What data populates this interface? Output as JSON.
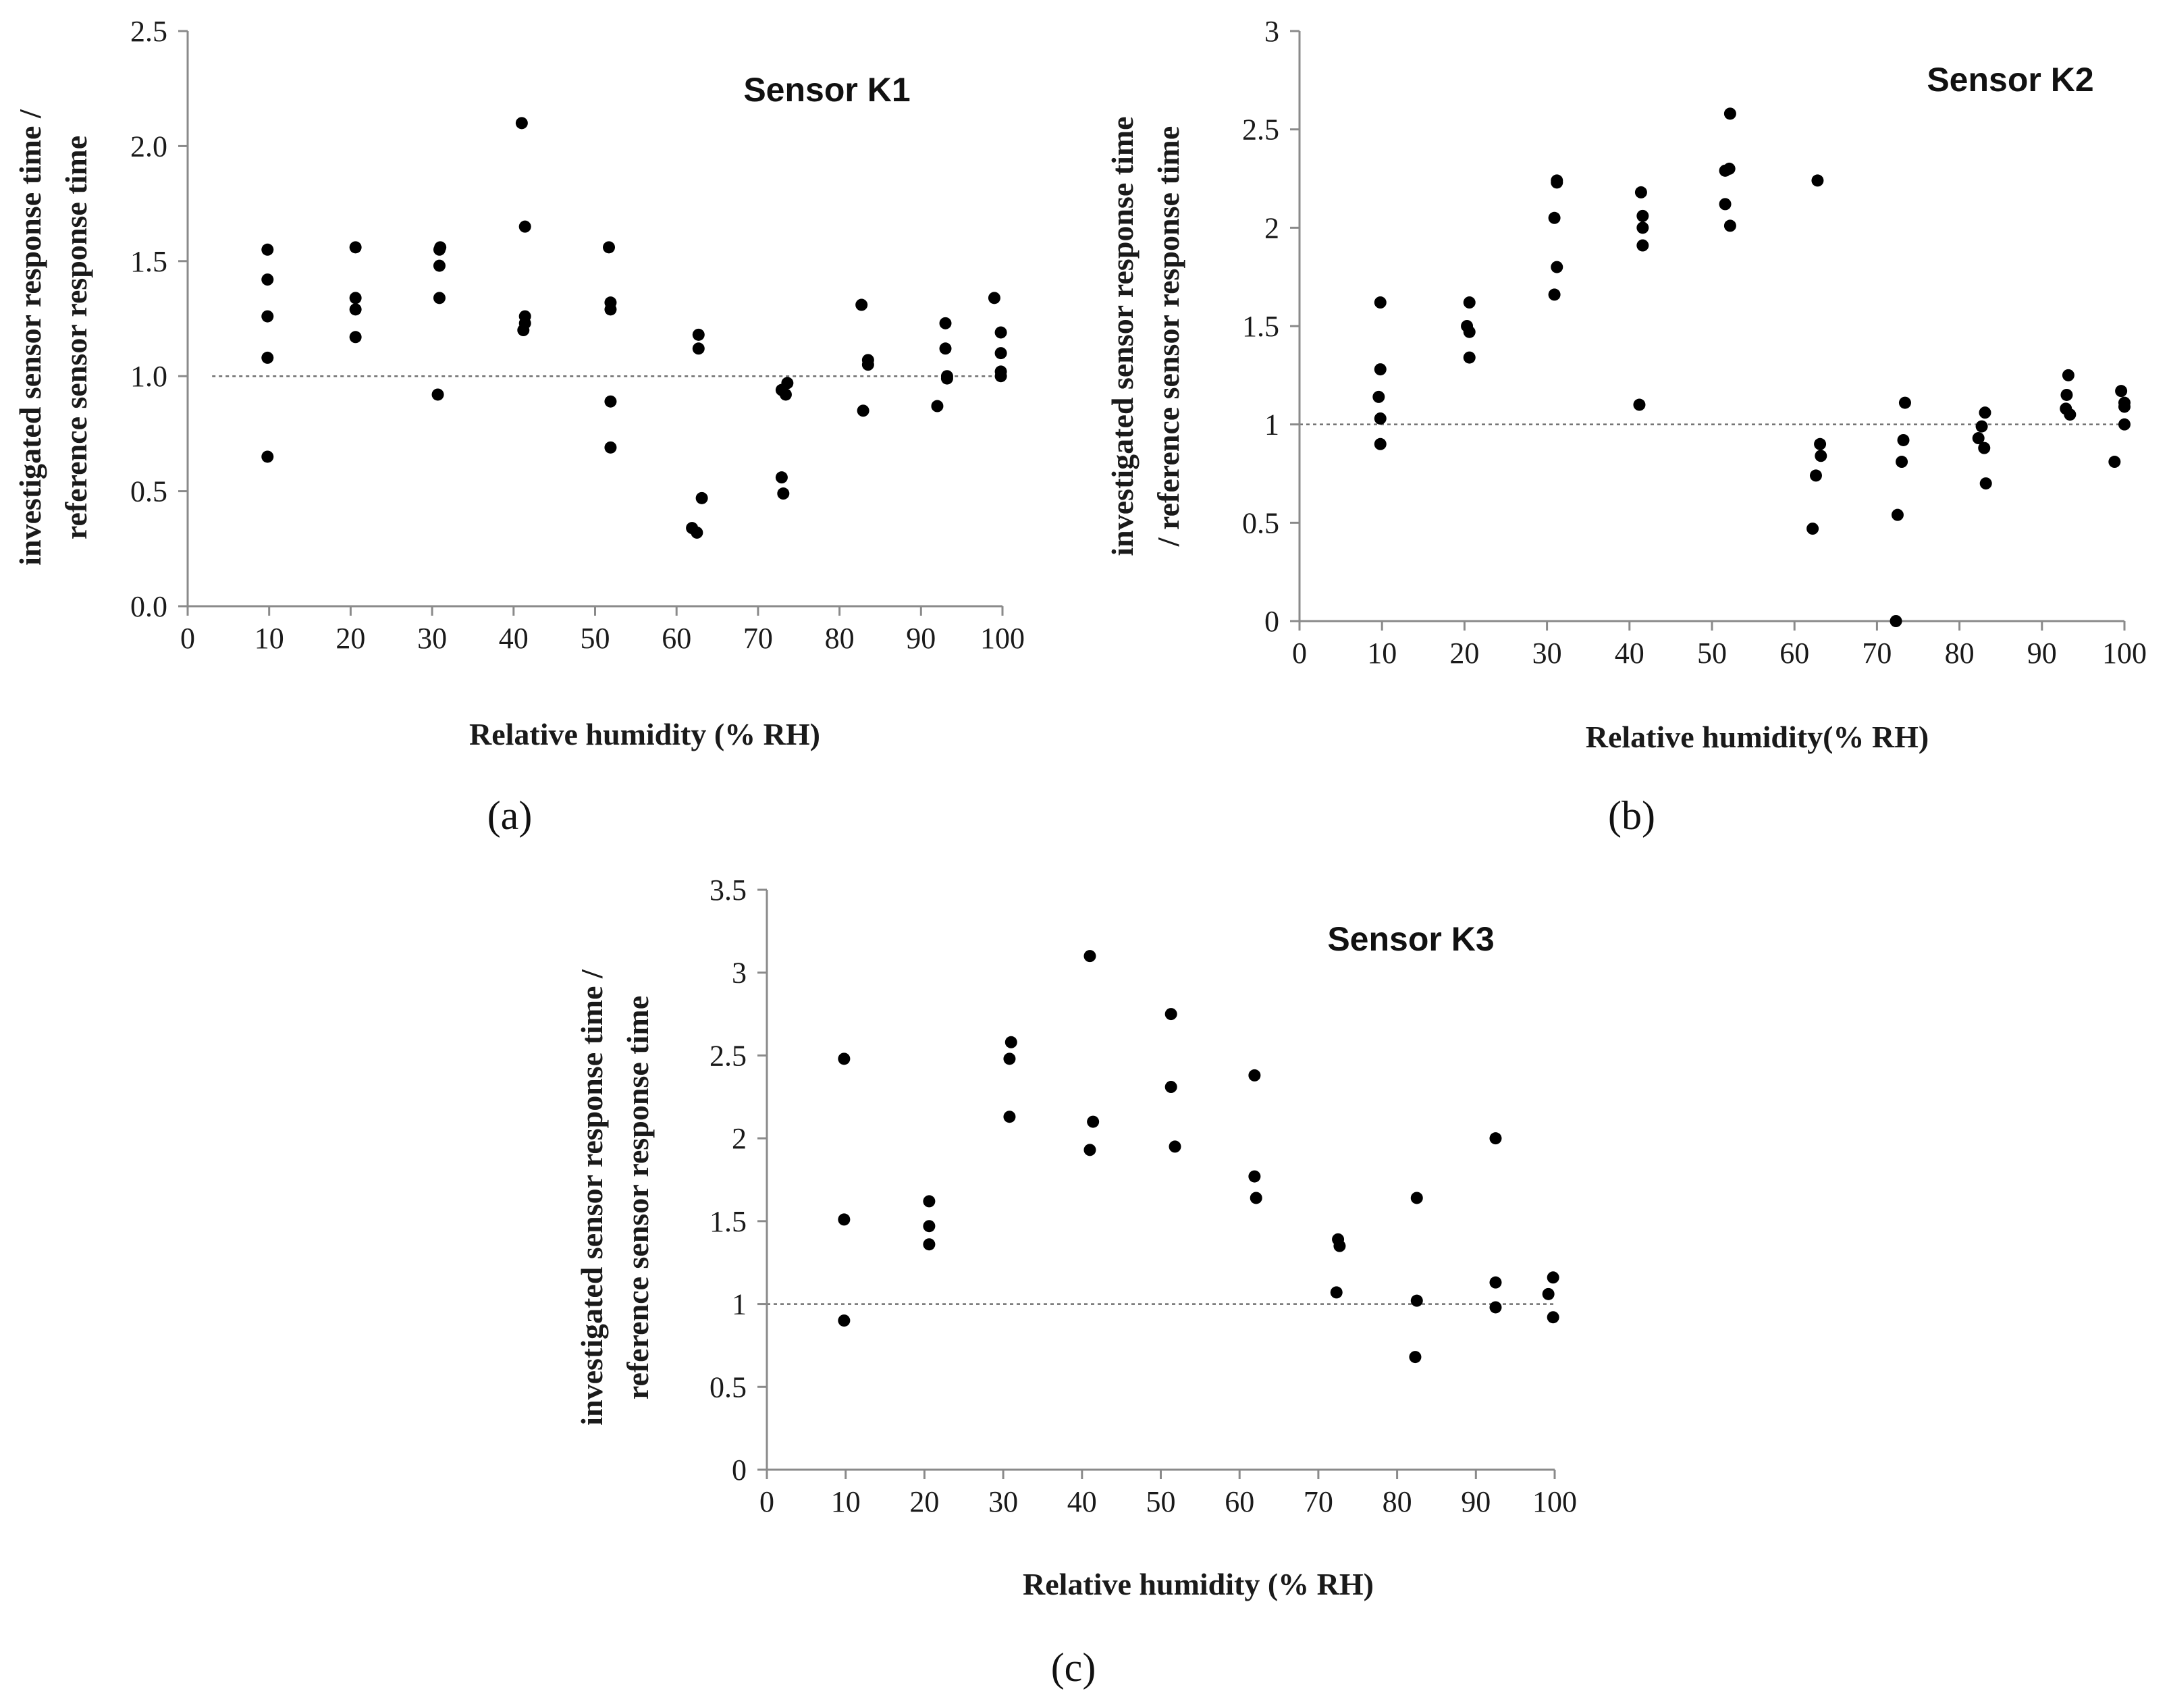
{
  "chart_data": [
    {
      "type": "scatter",
      "panel_label": "(a)",
      "title": "Sensor K1",
      "xlabel": "Relative humidity (% RH)",
      "ylabel_lines": [
        "investigated sensor response time /",
        "reference sensor response time"
      ],
      "xlim": [
        0,
        100
      ],
      "ylim": [
        0.0,
        2.5
      ],
      "x_ticks": [
        "0",
        "10",
        "20",
        "30",
        "40",
        "50",
        "60",
        "70",
        "80",
        "90",
        "100"
      ],
      "y_ticks": [
        "0.0",
        "0.5",
        "1.0",
        "1.5",
        "2.0",
        "2.5"
      ],
      "reference_line": 1.0,
      "points": [
        [
          9.8,
          1.55
        ],
        [
          9.8,
          1.42
        ],
        [
          9.8,
          1.26
        ],
        [
          9.8,
          1.08
        ],
        [
          9.8,
          0.65
        ],
        [
          20.6,
          1.56
        ],
        [
          20.6,
          1.34
        ],
        [
          20.6,
          1.29
        ],
        [
          20.6,
          1.17
        ],
        [
          31.0,
          1.56
        ],
        [
          30.9,
          1.55
        ],
        [
          30.9,
          1.48
        ],
        [
          30.9,
          1.34
        ],
        [
          30.7,
          0.92
        ],
        [
          41.0,
          2.1
        ],
        [
          41.4,
          1.65
        ],
        [
          41.4,
          1.26
        ],
        [
          41.4,
          1.23
        ],
        [
          41.2,
          1.2
        ],
        [
          51.7,
          1.56
        ],
        [
          51.9,
          1.32
        ],
        [
          51.9,
          1.29
        ],
        [
          51.9,
          0.89
        ],
        [
          51.9,
          0.69
        ],
        [
          62.7,
          1.18
        ],
        [
          62.7,
          1.12
        ],
        [
          61.9,
          0.34
        ],
        [
          62.5,
          0.32
        ],
        [
          63.1,
          0.47
        ],
        [
          72.9,
          0.94
        ],
        [
          73.4,
          0.92
        ],
        [
          73.6,
          0.97
        ],
        [
          72.9,
          0.56
        ],
        [
          73.1,
          0.49
        ],
        [
          82.7,
          1.31
        ],
        [
          83.5,
          1.07
        ],
        [
          83.5,
          1.05
        ],
        [
          82.9,
          0.85
        ],
        [
          93.0,
          1.23
        ],
        [
          93.0,
          1.12
        ],
        [
          93.2,
          1.0
        ],
        [
          93.2,
          0.99
        ],
        [
          92.0,
          0.87
        ],
        [
          99.0,
          1.34
        ],
        [
          99.8,
          1.19
        ],
        [
          99.8,
          1.1
        ],
        [
          99.8,
          1.02
        ],
        [
          99.8,
          1.0
        ]
      ]
    },
    {
      "type": "scatter",
      "panel_label": "(b)",
      "title": "Sensor K2",
      "xlabel": "Relative humidity(% RH)",
      "ylabel_lines": [
        "investigated sensor response time",
        "/ reference sensor response time"
      ],
      "xlim": [
        0,
        100
      ],
      "ylim": [
        0,
        3
      ],
      "x_ticks": [
        "0",
        "10",
        "20",
        "30",
        "40",
        "50",
        "60",
        "70",
        "80",
        "90",
        "100"
      ],
      "y_ticks": [
        "0",
        "0.5",
        "1",
        "1.5",
        "2",
        "2.5",
        "3"
      ],
      "reference_line": 1.0,
      "points": [
        [
          9.8,
          1.62
        ],
        [
          9.8,
          1.28
        ],
        [
          9.6,
          1.14
        ],
        [
          9.8,
          1.03
        ],
        [
          9.8,
          0.9
        ],
        [
          20.6,
          1.62
        ],
        [
          20.3,
          1.5
        ],
        [
          20.6,
          1.47
        ],
        [
          20.6,
          1.34
        ],
        [
          31.2,
          2.24
        ],
        [
          31.2,
          2.23
        ],
        [
          30.9,
          2.05
        ],
        [
          31.2,
          1.8
        ],
        [
          30.9,
          1.66
        ],
        [
          41.4,
          2.18
        ],
        [
          41.6,
          2.06
        ],
        [
          41.6,
          2.0
        ],
        [
          41.6,
          1.91
        ],
        [
          41.2,
          1.1
        ],
        [
          52.2,
          2.58
        ],
        [
          51.6,
          2.29
        ],
        [
          52.1,
          2.3
        ],
        [
          51.6,
          2.12
        ],
        [
          52.2,
          2.01
        ],
        [
          62.8,
          2.24
        ],
        [
          63.1,
          0.9
        ],
        [
          63.2,
          0.84
        ],
        [
          62.6,
          0.74
        ],
        [
          62.2,
          0.47
        ],
        [
          73.4,
          1.11
        ],
        [
          73.2,
          0.92
        ],
        [
          73.0,
          0.81
        ],
        [
          72.5,
          0.54
        ],
        [
          72.3,
          0.0
        ],
        [
          83.1,
          1.06
        ],
        [
          82.7,
          0.99
        ],
        [
          82.3,
          0.93
        ],
        [
          83.0,
          0.88
        ],
        [
          83.2,
          0.7
        ],
        [
          93.2,
          1.25
        ],
        [
          93.0,
          1.15
        ],
        [
          92.9,
          1.08
        ],
        [
          93.4,
          1.05
        ],
        [
          99.6,
          1.17
        ],
        [
          100.0,
          1.11
        ],
        [
          100.0,
          1.09
        ],
        [
          100.0,
          1.0
        ],
        [
          98.8,
          0.81
        ]
      ]
    },
    {
      "type": "scatter",
      "panel_label": "(c)",
      "title": "Sensor K3",
      "xlabel": "Relative humidity (% RH)",
      "ylabel_lines": [
        "investigated sensor response time /",
        "reference sensor response time"
      ],
      "xlim": [
        0,
        100
      ],
      "ylim": [
        0,
        3.5
      ],
      "x_ticks": [
        "0",
        "10",
        "20",
        "30",
        "40",
        "50",
        "60",
        "70",
        "80",
        "90",
        "100"
      ],
      "y_ticks": [
        "0",
        "0.5",
        "1",
        "1.5",
        "2",
        "2.5",
        "3",
        "3.5"
      ],
      "reference_line": 1.0,
      "points": [
        [
          9.8,
          2.48
        ],
        [
          9.8,
          1.51
        ],
        [
          9.8,
          0.9
        ],
        [
          20.6,
          1.62
        ],
        [
          20.6,
          1.47
        ],
        [
          20.6,
          1.36
        ],
        [
          31.0,
          2.58
        ],
        [
          30.8,
          2.48
        ],
        [
          30.8,
          2.13
        ],
        [
          41.0,
          3.1
        ],
        [
          41.4,
          2.1
        ],
        [
          41.0,
          1.93
        ],
        [
          51.3,
          2.75
        ],
        [
          51.3,
          2.31
        ],
        [
          51.8,
          1.95
        ],
        [
          61.9,
          2.38
        ],
        [
          61.9,
          1.77
        ],
        [
          62.1,
          1.64
        ],
        [
          72.5,
          1.39
        ],
        [
          72.7,
          1.35
        ],
        [
          72.3,
          1.07
        ],
        [
          82.5,
          1.64
        ],
        [
          82.5,
          1.02
        ],
        [
          82.3,
          0.68
        ],
        [
          92.5,
          2.0
        ],
        [
          92.5,
          1.13
        ],
        [
          92.5,
          0.98
        ],
        [
          99.8,
          1.16
        ],
        [
          99.2,
          1.06
        ],
        [
          99.8,
          0.92
        ]
      ]
    }
  ]
}
